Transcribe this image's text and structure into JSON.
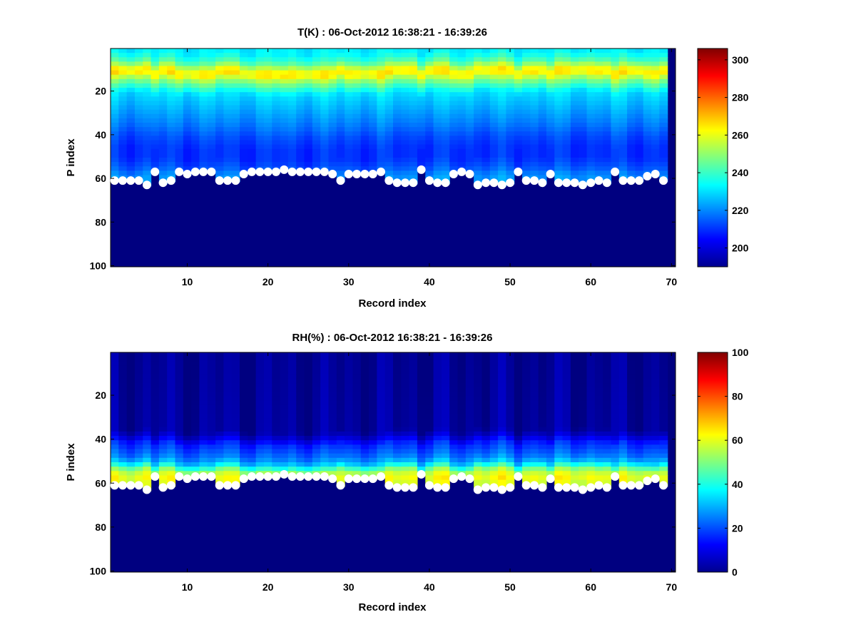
{
  "figure": {
    "background": "#ffffff"
  },
  "chart_data": [
    {
      "type": "heatmap",
      "id": "temperature",
      "title": "T(K) : 06-Oct-2012 16:38:21 - 16:39:26",
      "xlabel": "Record index",
      "ylabel": "P index",
      "xlim": [
        0.5,
        70.5
      ],
      "ylim": [
        0.5,
        100.5
      ],
      "y_reversed": true,
      "xticks": [
        10,
        20,
        30,
        40,
        50,
        60,
        70
      ],
      "yticks": [
        20,
        40,
        60,
        80,
        100
      ],
      "colormap": "jet",
      "clim": [
        190,
        306
      ],
      "colorbar_ticks": [
        200,
        220,
        240,
        260,
        280,
        300
      ],
      "underground_value": 190,
      "profile": {
        "description": "approximate column profile: T value by P index (interpolated)",
        "p": [
          1,
          4,
          6,
          8,
          9,
          11,
          12,
          14,
          17,
          20,
          25,
          30,
          35,
          40,
          45,
          50,
          55,
          58,
          60
        ],
        "value": [
          232,
          238,
          245,
          256,
          262,
          265,
          260,
          250,
          240,
          230,
          226,
          222,
          218,
          213,
          210,
          210,
          215,
          220,
          222
        ]
      },
      "marker_color": "#ffffff"
    },
    {
      "type": "heatmap",
      "id": "humidity",
      "title": "RH(%) : 06-Oct-2012 16:38:21 - 16:39:26",
      "xlabel": "Record index",
      "ylabel": "P index",
      "xlim": [
        0.5,
        70.5
      ],
      "ylim": [
        0.5,
        100.5
      ],
      "y_reversed": true,
      "xticks": [
        10,
        20,
        30,
        40,
        50,
        60,
        70
      ],
      "yticks": [
        20,
        40,
        60,
        80,
        100
      ],
      "colormap": "jet",
      "clim": [
        0,
        100
      ],
      "colorbar_ticks": [
        0,
        20,
        40,
        60,
        80,
        100
      ],
      "underground_value": 0,
      "profile": {
        "description": "approximate column profile: RH value by P index (interpolated)",
        "p": [
          1,
          35,
          38,
          41,
          44,
          47,
          50,
          52,
          54,
          56,
          58,
          60
        ],
        "value": [
          2,
          3,
          8,
          16,
          20,
          24,
          32,
          44,
          55,
          60,
          62,
          58
        ]
      },
      "marker_color": "#ffffff"
    }
  ],
  "surface_level": {
    "description": "P index of surface marker for each record 1..70 (shared by both panels)",
    "records": [
      1,
      2,
      3,
      4,
      5,
      6,
      7,
      8,
      9,
      10,
      11,
      12,
      13,
      14,
      15,
      16,
      17,
      18,
      19,
      20,
      21,
      22,
      23,
      24,
      25,
      26,
      27,
      28,
      29,
      30,
      31,
      32,
      33,
      34,
      35,
      36,
      37,
      38,
      39,
      40,
      41,
      42,
      43,
      44,
      45,
      46,
      47,
      48,
      49,
      50,
      51,
      52,
      53,
      54,
      55,
      56,
      57,
      58,
      59,
      60,
      61,
      62,
      63,
      64,
      65,
      66,
      67,
      68,
      69,
      70
    ],
    "p_index": [
      61,
      61,
      61,
      61,
      63,
      57,
      62,
      61,
      57,
      58,
      57,
      57,
      57,
      61,
      61,
      61,
      58,
      57,
      57,
      57,
      57,
      56,
      57,
      57,
      57,
      57,
      57,
      58,
      61,
      58,
      58,
      58,
      58,
      57,
      61,
      62,
      62,
      62,
      56,
      61,
      62,
      62,
      58,
      57,
      58,
      63,
      62,
      62,
      63,
      62,
      57,
      61,
      61,
      62,
      58,
      62,
      62,
      62,
      63,
      62,
      61,
      62,
      57,
      61,
      61,
      61,
      59,
      58,
      61,
      null
    ]
  }
}
